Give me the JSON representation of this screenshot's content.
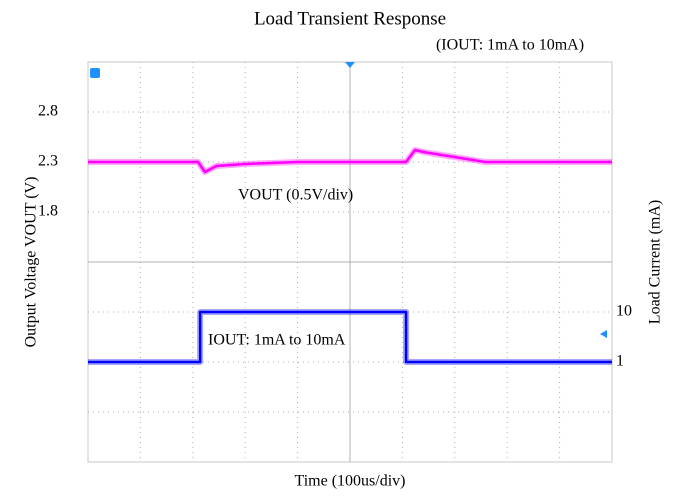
{
  "chart_data": {
    "type": "line",
    "title": "Load Transient Response",
    "subtitle": "(IOUT: 1mA to 10mA)",
    "xlabel": "Time (100us/div)",
    "ylabel": "Output Voltage VOUT (V)",
    "y2label": "Load Current (mA)",
    "annotations": [
      "VOUT (0.5V/div)",
      "IOUT: 1mA to 10mA"
    ],
    "xlim": [
      0,
      1000
    ],
    "ylim": [
      -0.7,
      3.3
    ],
    "yticks": [
      1.8,
      2.3,
      2.8
    ],
    "y2lim": [
      -17,
      55
    ],
    "y2ticks": [
      1,
      10
    ],
    "series": [
      {
        "name": "VOUT",
        "color": "#ff00ff",
        "x": [
          0,
          210,
          223,
          245,
          300,
          400,
          607,
          624,
          640,
          758,
          1000
        ],
        "values": [
          2.3,
          2.3,
          2.2,
          2.26,
          2.28,
          2.3,
          2.3,
          2.42,
          2.4,
          2.3,
          2.3
        ]
      },
      {
        "name": "IOUT",
        "color": "#0000ff",
        "axis": "y2",
        "x": [
          0,
          214,
          214,
          607,
          607,
          1000
        ],
        "values": [
          1,
          1,
          10,
          10,
          1,
          1
        ]
      }
    ]
  }
}
